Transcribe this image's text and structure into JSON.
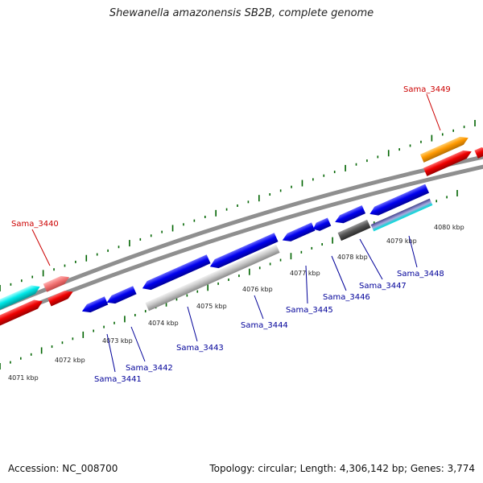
{
  "title": "Shewanella amazonensis SB2B, complete genome",
  "footer": {
    "accession": "Accession: NC_008700",
    "summary": "Topology: circular; Length: 4,306,142 bp; Genes: 3,774"
  },
  "colors": {
    "forward_strand_label": "#cc0000",
    "reverse_strand_label": "#000099",
    "tick": "#006400",
    "backbone": "#888888"
  },
  "scale_ticks": [
    {
      "label": "4071 kbp"
    },
    {
      "label": "4072 kbp"
    },
    {
      "label": "4073 kbp"
    },
    {
      "label": "4074 kbp"
    },
    {
      "label": "4075 kbp"
    },
    {
      "label": "4076 kbp"
    },
    {
      "label": "4077 kbp"
    },
    {
      "label": "4078 kbp"
    },
    {
      "label": "4079 kbp"
    },
    {
      "label": "4080 kbp"
    }
  ],
  "gene_labels": [
    {
      "name": "Sama_3440",
      "strand": "forward"
    },
    {
      "name": "Sama_3449",
      "strand": "forward"
    },
    {
      "name": "Sama_3441",
      "strand": "reverse"
    },
    {
      "name": "Sama_3442",
      "strand": "reverse"
    },
    {
      "name": "Sama_3443",
      "strand": "reverse"
    },
    {
      "name": "Sama_3444",
      "strand": "reverse"
    },
    {
      "name": "Sama_3445",
      "strand": "reverse"
    },
    {
      "name": "Sama_3446",
      "strand": "reverse"
    },
    {
      "name": "Sama_3447",
      "strand": "reverse"
    },
    {
      "name": "Sama_3448",
      "strand": "reverse"
    }
  ]
}
